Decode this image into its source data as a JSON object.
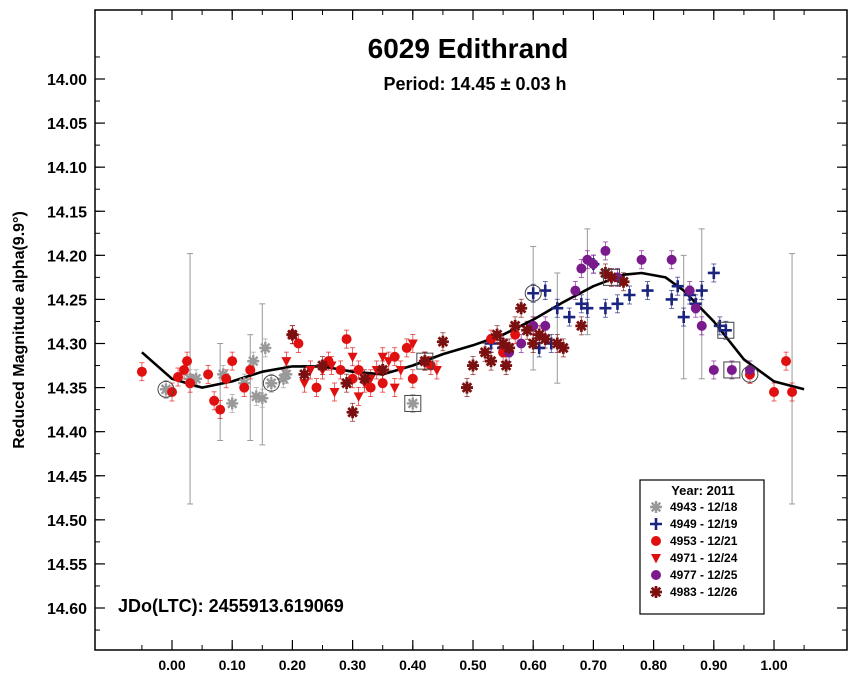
{
  "chart_data": {
    "type": "scatter",
    "title": "6029 Edithrand",
    "subtitle": "Period: 14.45 ± 0.03 h",
    "xlabel": "",
    "ylabel": "Reduced Magnitude alpha(9.9°)",
    "annotation": "JDo(LTC): 2455913.619069",
    "xlim": [
      -0.1,
      1.1
    ],
    "ylim": [
      14.65,
      13.95
    ],
    "y_inverted": true,
    "x_ticks": [
      "0.00",
      "0.10",
      "0.20",
      "0.30",
      "0.40",
      "0.50",
      "0.60",
      "0.70",
      "0.80",
      "0.90",
      "1.00"
    ],
    "y_ticks": [
      "14.00",
      "14.05",
      "14.10",
      "14.15",
      "14.20",
      "14.25",
      "14.30",
      "14.35",
      "14.40",
      "14.45",
      "14.50",
      "14.55",
      "14.60"
    ],
    "legend": {
      "title": "Year: 2011",
      "placement": "bottom-right",
      "entries": [
        "4943 - 12/18",
        "4949 - 12/19",
        "4953 - 12/21",
        "4971 - 12/24",
        "4977 - 12/25",
        "4983 - 12/26"
      ]
    },
    "series": [
      {
        "marker": "asterisk",
        "color": "#999999",
        "points": [
          [
            -0.01,
            14.352
          ],
          [
            0.03,
            14.34
          ],
          [
            0.085,
            14.335
          ],
          [
            0.1,
            14.368
          ],
          [
            0.12,
            14.345
          ],
          [
            0.135,
            14.32
          ],
          [
            0.14,
            14.36
          ],
          [
            0.155,
            14.305
          ],
          [
            0.165,
            14.345
          ],
          [
            0.185,
            14.34
          ],
          [
            0.19,
            14.335
          ],
          [
            0.4,
            14.368
          ],
          [
            0.04,
            14.34
          ],
          [
            0.15,
            14.362
          ]
        ]
      },
      {
        "marker": "plus",
        "color": "#1a237e",
        "points": [
          [
            0.53,
            14.3
          ],
          [
            0.55,
            14.305
          ],
          [
            0.6,
            14.243
          ],
          [
            0.62,
            14.24
          ],
          [
            0.64,
            14.26
          ],
          [
            0.66,
            14.27
          ],
          [
            0.68,
            14.255
          ],
          [
            0.69,
            14.26
          ],
          [
            0.72,
            14.26
          ],
          [
            0.74,
            14.255
          ],
          [
            0.76,
            14.245
          ],
          [
            0.79,
            14.24
          ],
          [
            0.84,
            14.235
          ],
          [
            0.85,
            14.27
          ],
          [
            0.87,
            14.255
          ],
          [
            0.88,
            14.24
          ],
          [
            0.9,
            14.22
          ],
          [
            0.91,
            14.28
          ],
          [
            0.92,
            14.285
          ],
          [
            0.61,
            14.305
          ],
          [
            0.7,
            14.21
          ],
          [
            0.83,
            14.25
          ],
          [
            0.86,
            14.245
          ],
          [
            0.63,
            14.3
          ]
        ]
      },
      {
        "marker": "circle",
        "color": "#e01010",
        "points": [
          [
            -0.05,
            14.332
          ],
          [
            0.0,
            14.355
          ],
          [
            0.01,
            14.338
          ],
          [
            0.02,
            14.33
          ],
          [
            0.025,
            14.32
          ],
          [
            0.03,
            14.345
          ],
          [
            0.06,
            14.335
          ],
          [
            0.07,
            14.365
          ],
          [
            0.08,
            14.375
          ],
          [
            0.09,
            14.34
          ],
          [
            0.1,
            14.32
          ],
          [
            0.12,
            14.35
          ],
          [
            0.13,
            14.33
          ],
          [
            0.2,
            14.29
          ],
          [
            0.21,
            14.3
          ],
          [
            0.24,
            14.35
          ],
          [
            0.26,
            14.32
          ],
          [
            0.28,
            14.33
          ],
          [
            0.3,
            14.34
          ],
          [
            0.33,
            14.35
          ],
          [
            0.37,
            14.315
          ],
          [
            0.39,
            14.305
          ],
          [
            0.4,
            14.34
          ],
          [
            0.42,
            14.32
          ],
          [
            0.96,
            14.335
          ],
          [
            1.0,
            14.355
          ],
          [
            1.02,
            14.32
          ],
          [
            1.03,
            14.355
          ],
          [
            0.29,
            14.295
          ],
          [
            0.31,
            14.33
          ],
          [
            0.35,
            14.345
          ],
          [
            0.43,
            14.325
          ],
          [
            0.53,
            14.295
          ],
          [
            0.55,
            14.31
          ],
          [
            0.57,
            14.29
          ],
          [
            0.6,
            14.28
          ]
        ]
      },
      {
        "marker": "triangle",
        "color": "#e01010",
        "points": [
          [
            0.19,
            14.32
          ],
          [
            0.23,
            14.33
          ],
          [
            0.25,
            14.33
          ],
          [
            0.27,
            14.355
          ],
          [
            0.3,
            14.315
          ],
          [
            0.32,
            14.345
          ],
          [
            0.33,
            14.34
          ],
          [
            0.34,
            14.33
          ],
          [
            0.35,
            14.315
          ],
          [
            0.36,
            14.32
          ],
          [
            0.38,
            14.33
          ],
          [
            0.4,
            14.3
          ],
          [
            0.42,
            14.32
          ],
          [
            0.44,
            14.33
          ],
          [
            0.22,
            14.345
          ],
          [
            0.265,
            14.325
          ],
          [
            0.31,
            14.36
          ],
          [
            0.37,
            14.35
          ]
        ]
      },
      {
        "marker": "circle",
        "color": "#7b1a8c",
        "points": [
          [
            0.56,
            14.31
          ],
          [
            0.58,
            14.3
          ],
          [
            0.6,
            14.28
          ],
          [
            0.62,
            14.28
          ],
          [
            0.67,
            14.24
          ],
          [
            0.68,
            14.215
          ],
          [
            0.69,
            14.205
          ],
          [
            0.7,
            14.21
          ],
          [
            0.72,
            14.195
          ],
          [
            0.74,
            14.225
          ],
          [
            0.78,
            14.205
          ],
          [
            0.83,
            14.205
          ],
          [
            0.86,
            14.24
          ],
          [
            0.87,
            14.26
          ],
          [
            0.88,
            14.28
          ],
          [
            0.9,
            14.33
          ],
          [
            0.93,
            14.33
          ],
          [
            0.96,
            14.33
          ]
        ]
      },
      {
        "marker": "star",
        "color": "#7a1010",
        "points": [
          [
            0.2,
            14.29
          ],
          [
            0.22,
            14.335
          ],
          [
            0.25,
            14.325
          ],
          [
            0.29,
            14.345
          ],
          [
            0.3,
            14.378
          ],
          [
            0.32,
            14.34
          ],
          [
            0.35,
            14.33
          ],
          [
            0.42,
            14.32
          ],
          [
            0.45,
            14.298
          ],
          [
            0.49,
            14.35
          ],
          [
            0.5,
            14.325
          ],
          [
            0.52,
            14.31
          ],
          [
            0.54,
            14.29
          ],
          [
            0.55,
            14.3
          ],
          [
            0.56,
            14.305
          ],
          [
            0.57,
            14.28
          ],
          [
            0.58,
            14.26
          ],
          [
            0.59,
            14.285
          ],
          [
            0.6,
            14.3
          ],
          [
            0.62,
            14.295
          ],
          [
            0.64,
            14.3
          ],
          [
            0.68,
            14.28
          ],
          [
            0.72,
            14.22
          ],
          [
            0.73,
            14.225
          ],
          [
            0.75,
            14.23
          ],
          [
            0.53,
            14.32
          ],
          [
            0.555,
            14.325
          ],
          [
            0.61,
            14.29
          ],
          [
            0.65,
            14.305
          ]
        ]
      }
    ],
    "errorbars": [
      [
        0.03,
        14.198,
        14.482
      ],
      [
        0.15,
        14.255,
        14.415
      ],
      [
        1.03,
        14.198,
        14.482
      ],
      [
        0.13,
        14.29,
        14.41
      ],
      [
        0.08,
        14.3,
        14.41
      ],
      [
        0.6,
        14.19,
        14.33
      ],
      [
        0.88,
        14.17,
        14.34
      ],
      [
        0.64,
        14.22,
        14.345
      ],
      [
        0.69,
        14.17,
        14.29
      ],
      [
        0.85,
        14.2,
        14.34
      ]
    ],
    "fit_curve": [
      [
        -0.05,
        14.31
      ],
      [
        0.0,
        14.34
      ],
      [
        0.05,
        14.35
      ],
      [
        0.1,
        14.343
      ],
      [
        0.15,
        14.332
      ],
      [
        0.2,
        14.326
      ],
      [
        0.25,
        14.326
      ],
      [
        0.3,
        14.332
      ],
      [
        0.35,
        14.335
      ],
      [
        0.4,
        14.325
      ],
      [
        0.45,
        14.312
      ],
      [
        0.5,
        14.302
      ],
      [
        0.55,
        14.29
      ],
      [
        0.6,
        14.273
      ],
      [
        0.65,
        14.253
      ],
      [
        0.7,
        14.235
      ],
      [
        0.75,
        14.222
      ],
      [
        0.78,
        14.22
      ],
      [
        0.82,
        14.225
      ],
      [
        0.85,
        14.24
      ],
      [
        0.9,
        14.275
      ],
      [
        0.95,
        14.318
      ],
      [
        1.0,
        14.343
      ],
      [
        1.05,
        14.352
      ]
    ],
    "open_markers": [
      [
        -0.01,
        14.352,
        "circle"
      ],
      [
        0.165,
        14.345,
        "circle"
      ],
      [
        0.6,
        14.243,
        "circle"
      ],
      [
        0.96,
        14.335,
        "circle"
      ],
      [
        0.4,
        14.368,
        "square"
      ],
      [
        0.42,
        14.32,
        "square"
      ],
      [
        0.92,
        14.285,
        "square"
      ],
      [
        0.93,
        14.33,
        "square"
      ],
      [
        0.73,
        14.225,
        "square"
      ]
    ]
  }
}
